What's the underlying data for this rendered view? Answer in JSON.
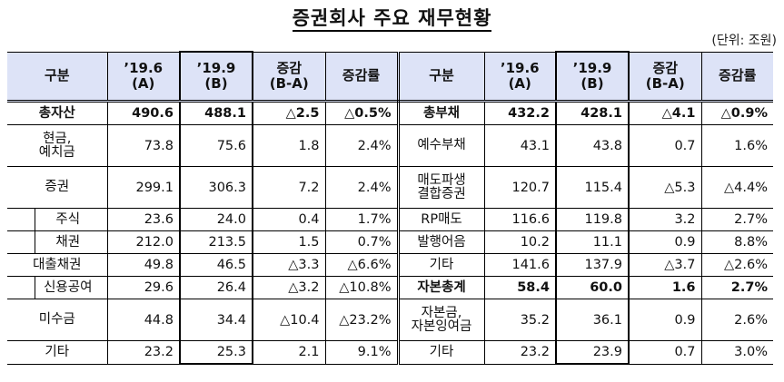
{
  "title": "증권회사 주요 재무현황",
  "unit": "(단위: 조원)",
  "header": {
    "category": "구분",
    "a_line1": "’19.6",
    "a_line2": "(A)",
    "b_line1": "’19.9",
    "b_line2": "(B)",
    "diff_line1": "증감",
    "diff_line2": "(B-A)",
    "rate": "증감률"
  },
  "colors": {
    "header_bg": "#dde3f7",
    "border": "#000000"
  },
  "assets": [
    {
      "label": "총자산",
      "a": "490.6",
      "b": "488.1",
      "diff": "△2.5",
      "rate": "△0.5%",
      "bold": true
    },
    {
      "label": "현금,\n예치금",
      "a": "73.8",
      "b": "75.6",
      "diff": "1.8",
      "rate": "2.4%"
    },
    {
      "label": "증권",
      "a": "299.1",
      "b": "306.3",
      "diff": "7.2",
      "rate": "2.4%"
    },
    {
      "label": "주식",
      "a": "23.6",
      "b": "24.0",
      "diff": "0.4",
      "rate": "1.7%",
      "sub": true
    },
    {
      "label": "채권",
      "a": "212.0",
      "b": "213.5",
      "diff": "1.5",
      "rate": "0.7%",
      "sub": true
    },
    {
      "label": "대출채권",
      "a": "49.8",
      "b": "46.5",
      "diff": "△3.3",
      "rate": "△6.6%"
    },
    {
      "label": "신용공여",
      "a": "29.6",
      "b": "26.4",
      "diff": "△3.2",
      "rate": "△10.8%",
      "sub": true
    },
    {
      "label": "미수금",
      "a": "44.8",
      "b": "34.4",
      "diff": "△10.4",
      "rate": "△23.2%"
    },
    {
      "label": "기타",
      "a": "23.2",
      "b": "25.3",
      "diff": "2.1",
      "rate": "9.1%"
    }
  ],
  "liabilities": [
    {
      "label": "총부채",
      "a": "432.2",
      "b": "428.1",
      "diff": "△4.1",
      "rate": "△0.9%",
      "bold": true
    },
    {
      "label": "예수부채",
      "a": "43.1",
      "b": "43.8",
      "diff": "0.7",
      "rate": "1.6%"
    },
    {
      "label": "매도파생\n결합증권",
      "a": "120.7",
      "b": "115.4",
      "diff": "△5.3",
      "rate": "△4.4%"
    },
    {
      "label": "RP매도",
      "a": "116.6",
      "b": "119.8",
      "diff": "3.2",
      "rate": "2.7%"
    },
    {
      "label": "발행어음",
      "a": "10.2",
      "b": "11.1",
      "diff": "0.9",
      "rate": "8.8%"
    },
    {
      "label": "기타",
      "a": "141.6",
      "b": "137.9",
      "diff": "△3.7",
      "rate": "△2.6%"
    },
    {
      "label": "자본총계",
      "a": "58.4",
      "b": "60.0",
      "diff": "1.6",
      "rate": "2.7%",
      "bold": true
    },
    {
      "label": "자본금,\n자본잉여금",
      "a": "35.2",
      "b": "36.1",
      "diff": "0.9",
      "rate": "2.6%"
    },
    {
      "label": "기타",
      "a": "23.2",
      "b": "23.9",
      "diff": "0.7",
      "rate": "3.0%"
    }
  ]
}
